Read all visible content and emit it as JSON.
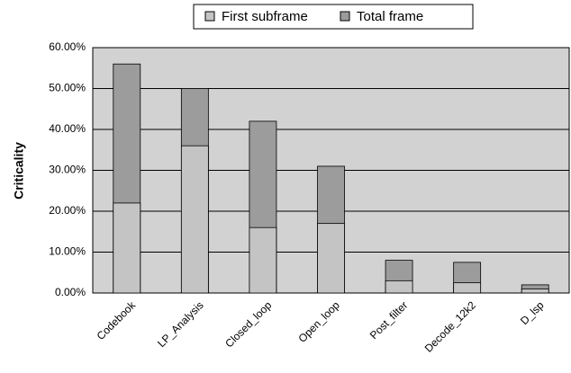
{
  "chart_data": {
    "type": "bar",
    "mode": "overlap",
    "y_label": "Criticality",
    "categories": [
      "Codebook",
      "LP_Analysis",
      "Closed_loop",
      "Open_loop",
      "Post_filter",
      "Decode_12k2",
      "D_lsp"
    ],
    "series": [
      {
        "name": "First subframe",
        "color": "#c4c4c4",
        "values": [
          22,
          36,
          16,
          17,
          3,
          2.5,
          1
        ]
      },
      {
        "name": "Total frame",
        "color": "#9c9c9c",
        "values": [
          56,
          50,
          42,
          31,
          8,
          7.5,
          2
        ]
      }
    ],
    "ylim": [
      0,
      60
    ],
    "yticks": [
      {
        "value": 0,
        "label": "0.00%"
      },
      {
        "value": 10,
        "label": "10.00%"
      },
      {
        "value": 20,
        "label": "20.00%"
      },
      {
        "value": 30,
        "label": "30.00%"
      },
      {
        "value": 40,
        "label": "40.00%"
      },
      {
        "value": 50,
        "label": "50.00%"
      },
      {
        "value": 60,
        "label": "60.00%"
      }
    ],
    "grid": true,
    "legend": "top"
  }
}
